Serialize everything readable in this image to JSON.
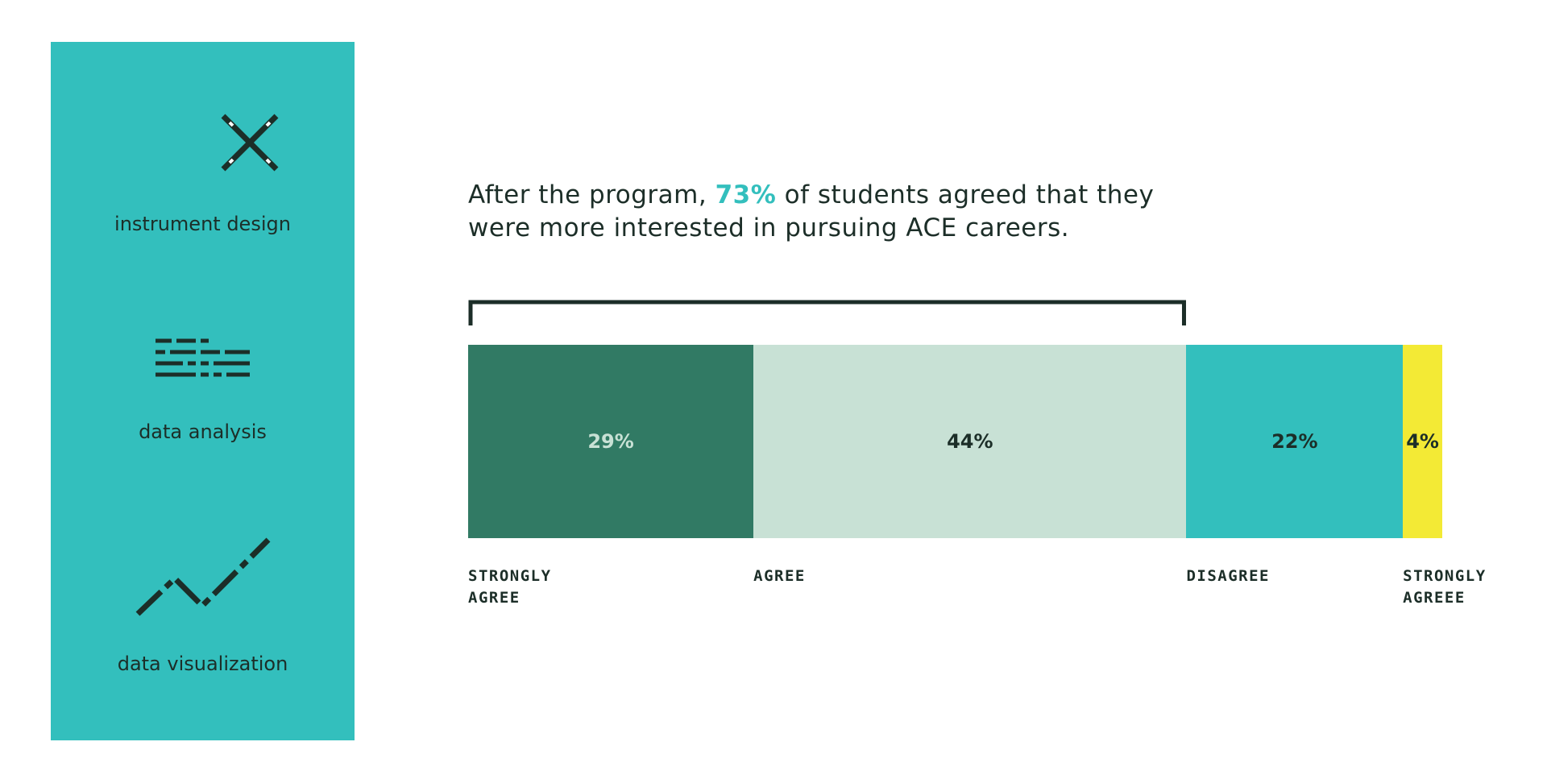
{
  "sidebar": {
    "items": [
      "instrument design",
      "data analysis",
      "data visualization"
    ]
  },
  "headline": {
    "before": "After the program,",
    "highlight": "73%",
    "after": "of students agreed that they were more interested in pursuing ACE careers."
  },
  "chart_data": {
    "type": "stacked-bar",
    "categories": [
      "STRONGLY AGREE",
      "AGREE",
      "DISAGREE",
      "STRONGLY AGREEE"
    ],
    "values": [
      29,
      44,
      22,
      4
    ],
    "value_labels": [
      "29%",
      "44%",
      "22%",
      "4%"
    ],
    "colors": [
      "#317a64",
      "#c8e1d5",
      "#33bfbd",
      "#f3ea35"
    ],
    "label_colors": [
      "#c8e1d5",
      "#1c2e28",
      "#1c2e28",
      "#1c2e28"
    ]
  }
}
